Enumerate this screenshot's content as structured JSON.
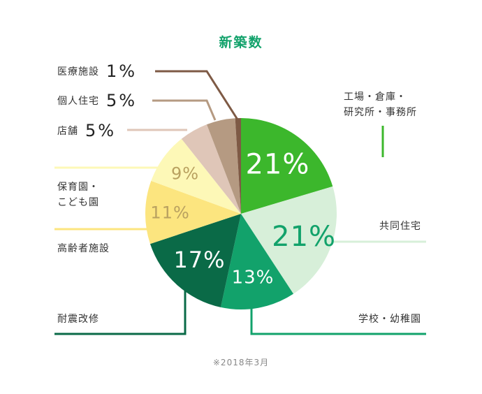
{
  "title": "新築数",
  "note": "※2018年3月",
  "chart_data": {
    "type": "pie",
    "title": "新築数",
    "start_angle_deg": 0,
    "direction": "clockwise",
    "slices": [
      {
        "label": "工場・倉庫・研究所・事務所",
        "value": 21,
        "display": "21%",
        "color": "#3cb72c",
        "text_color": "#ffffff"
      },
      {
        "label": "共同住宅",
        "value": 21,
        "display": "21%",
        "color": "#d7efd9",
        "text_color": "#12a26b"
      },
      {
        "label": "学校・幼稚園",
        "value": 13,
        "display": "13%",
        "color": "#12a26b",
        "text_color": "#ffffff"
      },
      {
        "label": "耐震改修",
        "value": 17,
        "display": "17%",
        "color": "#0a6a47",
        "text_color": "#ffffff"
      },
      {
        "label": "高齢者施設",
        "value": 11,
        "display": "11%",
        "color": "#fce57f",
        "text_color": "#b9a160"
      },
      {
        "label": "保育園・こども園",
        "value": 9,
        "display": "9%",
        "color": "#fdf8b7",
        "text_color": "#b9a160"
      },
      {
        "label": "店舗",
        "value": 5,
        "display": "5%",
        "color": "#dfc6b8",
        "text_color": "#333333"
      },
      {
        "label": "個人住宅",
        "value": 5,
        "display": "5%",
        "color": "#b59a82",
        "text_color": "#333333"
      },
      {
        "label": "医療施設",
        "value": 1,
        "display": "1%",
        "color": "#7e5a45",
        "text_color": "#333333"
      }
    ]
  },
  "labels": {
    "office_l1": "工場・倉庫・",
    "office_l2": "研究所・事務所",
    "apartment": "共同住宅",
    "school": "学校・幼稚園",
    "seismic": "耐震改修",
    "elderly": "高齢者施設",
    "nursery_l1": "保育園・",
    "nursery_l2": "こども園",
    "shop": "店舗",
    "shop_pct": "5%",
    "house": "個人住宅",
    "house_pct": "5%",
    "medical": "医療施設",
    "medical_pct": "1%"
  }
}
